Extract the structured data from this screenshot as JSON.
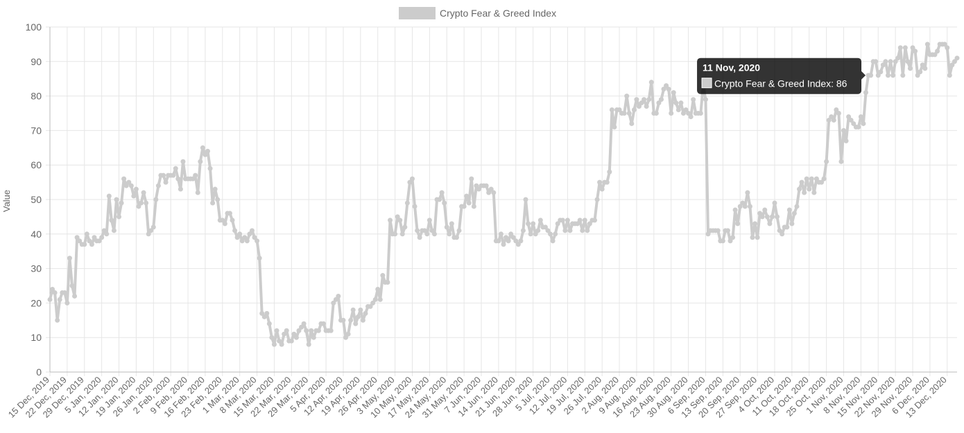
{
  "chart_data": {
    "type": "line",
    "y_label": "Value",
    "categories": [
      "15 Dec, 2019",
      null,
      null,
      null,
      null,
      null,
      null,
      "22 Dec, 2019",
      null,
      null,
      null,
      null,
      null,
      null,
      "29 Dec, 2019",
      null,
      null,
      null,
      null,
      null,
      null,
      "5 Jan, 2020",
      null,
      null,
      null,
      null,
      null,
      null,
      "12 Jan, 2020",
      null,
      null,
      null,
      null,
      null,
      null,
      "19 Jan, 2020",
      null,
      null,
      null,
      null,
      null,
      null,
      "26 Jan, 2020",
      null,
      null,
      null,
      null,
      null,
      null,
      "2 Feb, 2020",
      null,
      null,
      null,
      null,
      null,
      null,
      "9 Feb, 2020",
      null,
      null,
      null,
      null,
      null,
      null,
      "16 Feb, 2020",
      null,
      null,
      null,
      null,
      null,
      null,
      "23 Feb, 2020",
      null,
      null,
      null,
      null,
      null,
      null,
      "1 Mar, 2020",
      null,
      null,
      null,
      null,
      null,
      null,
      "8 Mar, 2020",
      null,
      null,
      null,
      null,
      null,
      null,
      "15 Mar, 2020",
      null,
      null,
      null,
      null,
      null,
      null,
      "22 Mar, 2020",
      null,
      null,
      null,
      null,
      null,
      null,
      "29 Mar, 2020",
      null,
      null,
      null,
      null,
      null,
      null,
      "5 Apr, 2020",
      null,
      null,
      null,
      null,
      null,
      null,
      "12 Apr, 2020",
      null,
      null,
      null,
      null,
      null,
      null,
      "19 Apr, 2020",
      null,
      null,
      null,
      null,
      null,
      null,
      "26 Apr, 2020",
      null,
      null,
      null,
      null,
      null,
      null,
      "3 May, 2020",
      null,
      null,
      null,
      null,
      null,
      null,
      "10 May, 2020",
      null,
      null,
      null,
      null,
      null,
      null,
      "17 May, 2020",
      null,
      null,
      null,
      null,
      null,
      null,
      "24 May, 2020",
      null,
      null,
      null,
      null,
      null,
      null,
      "31 May, 2020",
      null,
      null,
      null,
      null,
      null,
      null,
      "7 Jun, 2020",
      null,
      null,
      null,
      null,
      null,
      null,
      "14 Jun, 2020",
      null,
      null,
      null,
      null,
      null,
      null,
      "21 Jun, 2020",
      null,
      null,
      null,
      null,
      null,
      null,
      "28 Jun, 2020",
      null,
      null,
      null,
      null,
      null,
      null,
      "5 Jul, 2020",
      null,
      null,
      null,
      null,
      null,
      null,
      "12 Jul, 2020",
      null,
      null,
      null,
      null,
      null,
      null,
      "19 Jul, 2020",
      null,
      null,
      null,
      null,
      null,
      null,
      "26 Jul, 2020",
      null,
      null,
      null,
      null,
      null,
      null,
      "2 Aug, 2020",
      null,
      null,
      null,
      null,
      null,
      null,
      "9 Aug, 2020",
      null,
      null,
      null,
      null,
      null,
      null,
      "16 Aug, 2020",
      null,
      null,
      null,
      null,
      null,
      null,
      "23 Aug, 2020",
      null,
      null,
      null,
      null,
      null,
      null,
      "30 Aug, 2020",
      null,
      null,
      null,
      null,
      null,
      null,
      "6 Sep, 2020",
      null,
      null,
      null,
      null,
      null,
      null,
      "13 Sep, 2020",
      null,
      null,
      null,
      null,
      null,
      null,
      "20 Sep, 2020",
      null,
      null,
      null,
      null,
      null,
      null,
      "27 Sep, 2020",
      null,
      null,
      null,
      null,
      null,
      null,
      "4 Oct, 2020",
      null,
      null,
      null,
      null,
      null,
      null,
      "11 Oct, 2020",
      null,
      null,
      null,
      null,
      null,
      null,
      "18 Oct, 2020",
      null,
      null,
      null,
      null,
      null,
      null,
      "25 Oct, 2020",
      null,
      null,
      null,
      null,
      null,
      null,
      "1 Nov, 2020",
      null,
      null,
      null,
      null,
      null,
      null,
      "8 Nov, 2020",
      null,
      null,
      null,
      null,
      null,
      null,
      "15 Nov, 2020",
      null,
      null,
      null,
      null,
      null,
      null,
      "22 Nov, 2020",
      null,
      null,
      null,
      null,
      null,
      null,
      "29 Nov, 2020",
      null,
      null,
      null,
      null,
      null,
      null,
      "6 Dec, 2020",
      null,
      null,
      null,
      null,
      null,
      null,
      "13 Dec, 2020",
      null,
      null,
      null,
      null
    ],
    "series": [
      {
        "name": "Crypto Fear & Greed Index",
        "color": "#cccccc",
        "values": [
          21,
          24,
          23,
          15,
          21,
          23,
          23,
          20,
          33,
          25,
          22,
          39,
          38,
          37,
          37,
          40,
          38,
          37,
          39,
          38,
          38,
          39,
          41,
          40,
          51,
          44,
          41,
          50,
          45,
          49,
          56,
          54,
          55,
          54,
          51,
          53,
          48,
          49,
          52,
          49,
          40,
          41,
          42,
          50,
          54,
          57,
          57,
          55,
          57,
          57,
          57,
          59,
          56,
          53,
          61,
          56,
          56,
          56,
          56,
          57,
          52,
          61,
          65,
          63,
          64,
          59,
          49,
          53,
          50,
          44,
          44,
          43,
          46,
          46,
          44,
          41,
          39,
          40,
          38,
          39,
          38,
          40,
          41,
          39,
          38,
          33,
          17,
          16,
          17,
          14,
          10,
          8,
          12,
          9,
          8,
          11,
          12,
          9,
          9,
          11,
          10,
          12,
          13,
          14,
          12,
          8,
          12,
          10,
          12,
          12,
          14,
          14,
          12,
          12,
          12,
          20,
          21,
          22,
          15,
          15,
          10,
          11,
          15,
          18,
          14,
          16,
          18,
          15,
          17,
          19,
          19,
          20,
          21,
          24,
          21,
          28,
          26,
          26,
          44,
          40,
          40,
          45,
          44,
          40,
          42,
          49,
          55,
          56,
          48,
          41,
          39,
          41,
          41,
          40,
          44,
          41,
          40,
          50,
          50,
          52,
          49,
          42,
          40,
          43,
          39,
          39,
          41,
          48,
          48,
          51,
          49,
          56,
          48,
          54,
          53,
          54,
          54,
          54,
          52,
          53,
          52,
          38,
          38,
          40,
          37,
          39,
          38,
          40,
          39,
          38,
          37,
          38,
          41,
          50,
          43,
          40,
          43,
          40,
          41,
          44,
          42,
          42,
          41,
          40,
          38,
          40,
          43,
          44,
          44,
          41,
          44,
          41,
          43,
          43,
          43,
          44,
          41,
          44,
          41,
          43,
          44,
          44,
          50,
          55,
          53,
          55,
          55,
          58,
          76,
          71,
          76,
          76,
          75,
          75,
          80,
          75,
          72,
          76,
          79,
          77,
          78,
          79,
          77,
          79,
          84,
          75,
          75,
          78,
          79,
          82,
          83,
          82,
          75,
          81,
          78,
          76,
          78,
          75,
          76,
          75,
          74,
          79,
          75,
          75,
          75,
          83,
          79,
          40,
          41,
          41,
          41,
          41,
          38,
          38,
          41,
          41,
          38,
          39,
          47,
          43,
          48,
          49,
          48,
          52,
          48,
          39,
          43,
          39,
          46,
          45,
          47,
          45,
          43,
          45,
          49,
          45,
          41,
          40,
          42,
          42,
          47,
          43,
          46,
          48,
          53,
          55,
          52,
          56,
          53,
          56,
          52,
          56,
          55,
          55,
          56,
          61,
          73,
          74,
          73,
          76,
          75,
          61,
          70,
          67,
          74,
          73,
          72,
          71,
          71,
          74,
          72,
          81,
          86,
          86,
          90,
          90,
          86,
          87,
          89,
          90,
          86,
          90,
          86,
          90,
          91,
          94,
          86,
          94,
          90,
          88,
          94,
          93,
          86,
          87,
          89,
          88,
          95,
          92,
          92,
          92,
          93,
          95,
          95,
          95,
          94,
          86,
          89,
          90,
          91
        ]
      }
    ],
    "ylim": [
      0,
      100
    ],
    "yticks": [
      0,
      10,
      20,
      30,
      40,
      50,
      60,
      70,
      80,
      90,
      100
    ],
    "grid": true,
    "legend": "top",
    "tooltip": {
      "title": "11 Nov, 2020",
      "label": "Crypto Fear & Greed Index: 86",
      "index": 332
    }
  }
}
